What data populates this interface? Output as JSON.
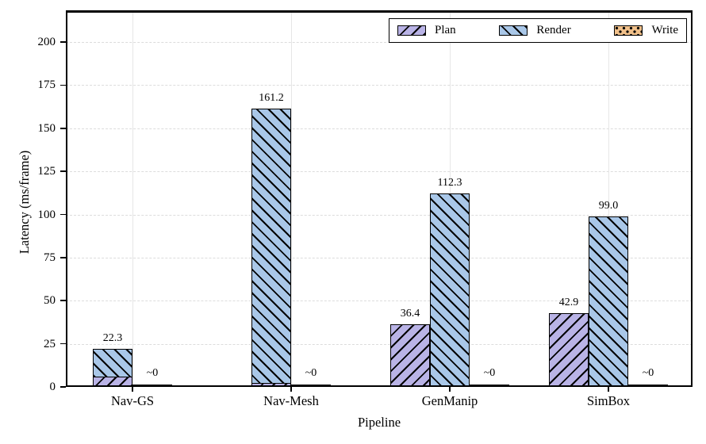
{
  "chart_data": {
    "type": "bar",
    "title": "",
    "xlabel": "Pipeline",
    "ylabel": "Latency (ms/frame)",
    "categories": [
      "Nav-GS",
      "Nav-Mesh",
      "GenManip",
      "SimBox"
    ],
    "series": [
      {
        "name": "Plan",
        "color": "#b9b3e6",
        "hatch": "/",
        "values": [
          6.0,
          2.3,
          36.4,
          42.9
        ],
        "labels": [
          "",
          "",
          "36.4",
          "42.9"
        ]
      },
      {
        "name": "Render",
        "color": "#a9c7e8",
        "hatch": "\\",
        "values": [
          22.3,
          161.2,
          112.3,
          99.0
        ],
        "labels": [
          "22.3",
          "161.2",
          "112.3",
          "99.0"
        ]
      },
      {
        "name": "Write",
        "color": "#f0c08a",
        "hatch": "..",
        "values": [
          0.5,
          0.5,
          0.5,
          0.5
        ],
        "labels": [
          "~0",
          "~0",
          "~0",
          "~0"
        ]
      }
    ],
    "plan_render_overlap": [
      true,
      true,
      false,
      false
    ],
    "yticks": [
      0,
      25,
      50,
      75,
      100,
      125,
      150,
      175,
      200
    ],
    "ylim": [
      0,
      218.4
    ],
    "grid": true,
    "legend": {
      "position": "upper right",
      "entries": [
        "Plan",
        "Render",
        "Write"
      ]
    }
  }
}
